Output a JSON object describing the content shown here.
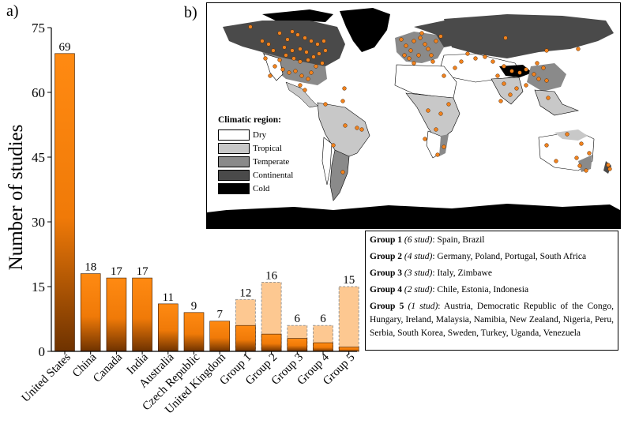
{
  "panel_a_label": "a)",
  "panel_b_label": "b)",
  "chart_data": {
    "type": "bar",
    "ylabel": "Number of studies",
    "xlabel": "",
    "ylim": [
      0,
      75
    ],
    "yticks": [
      0,
      15,
      30,
      45,
      60,
      75
    ],
    "categories": [
      "United States",
      "China",
      "Canada",
      "India",
      "Australia",
      "Czech Republic",
      "United Kingdom",
      "Group 1",
      "Group 2",
      "Group 3",
      "Group 4",
      "Group 5"
    ],
    "series": [
      {
        "values": [
          69,
          18,
          17,
          17,
          11,
          9,
          7,
          6,
          4,
          3,
          2,
          1
        ]
      },
      {
        "values": [
          0,
          0,
          0,
          0,
          0,
          0,
          0,
          12,
          16,
          6,
          6,
          15
        ]
      }
    ],
    "data_labels": [
      69,
      18,
      17,
      17,
      11,
      9,
      7,
      12,
      16,
      6,
      6,
      15
    ],
    "colors": {
      "bar_top": "#ff8a12",
      "bar_bottom": "#6e3200",
      "group_total": "#fdc891",
      "group_total_border": "#999999"
    }
  },
  "map": {
    "legend_title": "Climatic region:",
    "legend_items": [
      {
        "label": "Dry",
        "color": "#ffffff"
      },
      {
        "label": "Tropical",
        "color": "#c8c8c8"
      },
      {
        "label": "Temperate",
        "color": "#8a8a8a"
      },
      {
        "label": "Continental",
        "color": "#4a4a4a"
      },
      {
        "label": "Cold",
        "color": "#000000"
      }
    ],
    "point_color": "#f0821e"
  },
  "groups": [
    {
      "name": "Group 1",
      "count": "(6 stud)",
      "countries": ": Spain, Brazil"
    },
    {
      "name": "Group 2",
      "count": "(4 stud)",
      "countries": ": Germany, Poland, Portugal, South Africa"
    },
    {
      "name": "Group 3",
      "count": "(3 stud)",
      "countries": ": Italy, Zimbawe"
    },
    {
      "name": "Group 4",
      "count": "(2 stud)",
      "countries": ": Chile, Estonia, Indonesia"
    },
    {
      "name": "Group 5",
      "count": "(1 stud)",
      "countries": ": Austria, Democratic Republic of the Congo, Hungary, Ireland, Malaysia, Namibia, New Zealand, Nigeria, Peru, Serbia, South Korea, Sweden, Turkey, Uganda, Venezuela"
    }
  ]
}
